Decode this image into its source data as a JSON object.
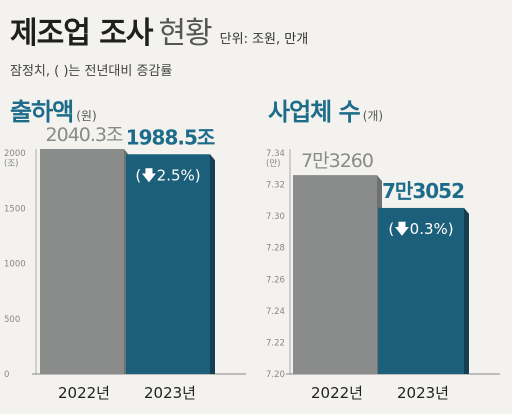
{
  "header": {
    "title": "제조업 조사",
    "subtitle": "현황",
    "unit_note": "단위: 조원, 만개",
    "note": "잠정치, ( )는 전년대비 증감률"
  },
  "colors": {
    "gray_bar": "#8a8c8b",
    "blue_bar": "#1c5f7a",
    "accent": "#1d6c8a",
    "background": "#f3f2ef"
  },
  "chart_data": [
    {
      "type": "bar",
      "title": "출하액",
      "unit": "(원)",
      "categories": [
        "2022년",
        "2023년"
      ],
      "values": [
        2040.3,
        1988.5
      ],
      "value_labels": [
        "2040.3조",
        "1988.5조"
      ],
      "change_label": "(🡇2.5%)",
      "ylim": [
        0,
        2000
      ],
      "yticks": [
        "2000 (조)",
        "1500",
        "1000",
        "500",
        "0"
      ],
      "grid": false
    },
    {
      "type": "bar",
      "title": "사업체 수",
      "unit": "(개)",
      "categories": [
        "2022년",
        "2023년"
      ],
      "values": [
        7.326,
        7.3052
      ],
      "value_labels": [
        "7만3260",
        "7만3052"
      ],
      "change_label": "(🡇0.3%)",
      "ylim": [
        7.2,
        7.34
      ],
      "yticks": [
        "7.34 (만)",
        "7.32",
        "7.30",
        "7.28",
        "7.26",
        "7.24",
        "7.22",
        "7.20"
      ],
      "grid": false
    }
  ]
}
